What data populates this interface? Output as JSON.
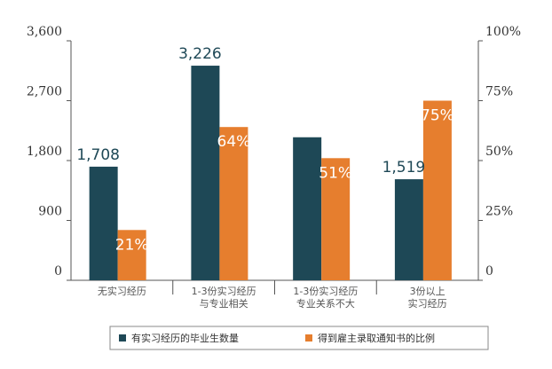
{
  "chart_data": {
    "type": "bar",
    "title": "",
    "categories": [
      "无实习经历",
      "1-3份实习经历\n与专业相关",
      "1-3份实习经历\n专业关系不大",
      "3份以上\n实习经历"
    ],
    "series": [
      {
        "name": "有实习经历的毕业生数量",
        "axis": "left",
        "color": "#1e4856",
        "values": [
          1708,
          3226,
          2150,
          1519
        ],
        "labels": [
          "1,708",
          "3,226",
          "",
          "1,519"
        ]
      },
      {
        "name": "得到雇主录取通知书的比例",
        "axis": "right",
        "color": "#e67e2e",
        "values": [
          21,
          64,
          51,
          75
        ],
        "labels": [
          "21%",
          "64%",
          "51%",
          "75%"
        ]
      }
    ],
    "y_left": {
      "min": 0,
      "max": 3600,
      "ticks": [
        "0",
        "900",
        "1,800",
        "2,700",
        "3,600"
      ]
    },
    "y_right": {
      "min": 0,
      "max": 100,
      "ticks": [
        "0",
        "25%",
        "50%",
        "75%",
        "100%"
      ]
    },
    "grid": false,
    "legend_position": "bottom"
  }
}
